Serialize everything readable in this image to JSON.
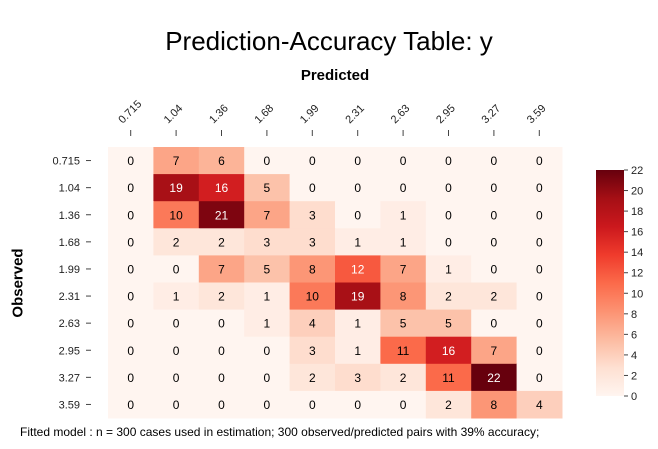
{
  "chart_data": {
    "type": "heatmap",
    "title": "Prediction-Accuracy Table: y",
    "xlabel": "Predicted",
    "ylabel": "Observed",
    "x_categories": [
      "0.715",
      "1.04",
      "1.36",
      "1.68",
      "1.99",
      "2.31",
      "2.63",
      "2.95",
      "3.27",
      "3.59"
    ],
    "y_categories": [
      "0.715",
      "1.04",
      "1.36",
      "1.68",
      "1.99",
      "2.31",
      "2.63",
      "2.95",
      "3.27",
      "3.59"
    ],
    "values": [
      [
        0,
        7,
        6,
        0,
        0,
        0,
        0,
        0,
        0,
        0
      ],
      [
        0,
        19,
        16,
        5,
        0,
        0,
        0,
        0,
        0,
        0
      ],
      [
        0,
        10,
        21,
        7,
        3,
        0,
        1,
        0,
        0,
        0
      ],
      [
        0,
        2,
        2,
        3,
        3,
        1,
        1,
        0,
        0,
        0
      ],
      [
        0,
        0,
        7,
        5,
        8,
        12,
        7,
        1,
        0,
        0
      ],
      [
        0,
        1,
        2,
        1,
        10,
        19,
        8,
        2,
        2,
        0
      ],
      [
        0,
        0,
        0,
        1,
        4,
        1,
        5,
        5,
        0,
        0
      ],
      [
        0,
        0,
        0,
        0,
        3,
        1,
        11,
        16,
        7,
        0
      ],
      [
        0,
        0,
        0,
        0,
        2,
        3,
        2,
        11,
        22,
        0
      ],
      [
        0,
        0,
        0,
        0,
        0,
        0,
        0,
        2,
        8,
        4
      ]
    ],
    "colorbar": {
      "min": 0,
      "max": 22,
      "ticks": [
        0,
        2,
        4,
        6,
        8,
        10,
        12,
        14,
        16,
        18,
        20,
        22
      ]
    },
    "colormap": [
      "#fff5f0",
      "#fee0d2",
      "#fcbba1",
      "#fc9272",
      "#fb6a4a",
      "#ef3b2c",
      "#cb181d",
      "#a50f15",
      "#67000d"
    ],
    "grid": false,
    "legend": "right"
  },
  "footer": "Fitted model : n = 300 cases used in estimation; 300 observed/predicted pairs with 39% accuracy;"
}
